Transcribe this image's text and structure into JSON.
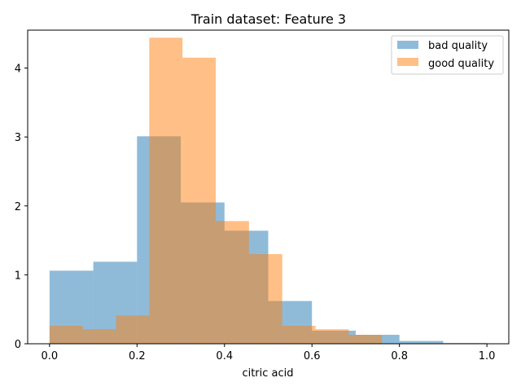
{
  "chart_data": {
    "type": "bar",
    "title": "Train dataset: Feature 3",
    "xlabel": "citric acid",
    "ylabel": "",
    "xlim": [
      -0.05,
      1.05
    ],
    "ylim": [
      0,
      4.55
    ],
    "xticks": [
      "0.0",
      "0.2",
      "0.4",
      "0.6",
      "0.8",
      "1.0"
    ],
    "xtick_values": [
      0.0,
      0.2,
      0.4,
      0.6,
      0.8,
      1.0
    ],
    "yticks": [
      "0",
      "1",
      "2",
      "3",
      "4"
    ],
    "ytick_values": [
      0,
      1,
      2,
      3,
      4
    ],
    "grid": false,
    "legend_position": "top-right",
    "series": [
      {
        "name": "bad quality",
        "color": "#1f77b4",
        "alpha": 0.5,
        "bins": [
          {
            "x0": 0.0,
            "x1": 0.1,
            "value": 1.06
          },
          {
            "x0": 0.1,
            "x1": 0.2,
            "value": 1.19
          },
          {
            "x0": 0.2,
            "x1": 0.3,
            "value": 3.01
          },
          {
            "x0": 0.3,
            "x1": 0.4,
            "value": 2.05
          },
          {
            "x0": 0.4,
            "x1": 0.5,
            "value": 1.64
          },
          {
            "x0": 0.5,
            "x1": 0.6,
            "value": 0.62
          },
          {
            "x0": 0.6,
            "x1": 0.7,
            "value": 0.19
          },
          {
            "x0": 0.7,
            "x1": 0.8,
            "value": 0.13
          },
          {
            "x0": 0.8,
            "x1": 0.9,
            "value": 0.04
          },
          {
            "x0": 0.9,
            "x1": 1.0,
            "value": 0.01
          }
        ]
      },
      {
        "name": "good quality",
        "color": "#ff7f0e",
        "alpha": 0.5,
        "bins": [
          {
            "x0": 0.0,
            "x1": 0.076,
            "value": 0.26
          },
          {
            "x0": 0.076,
            "x1": 0.152,
            "value": 0.21
          },
          {
            "x0": 0.152,
            "x1": 0.228,
            "value": 0.41
          },
          {
            "x0": 0.228,
            "x1": 0.304,
            "value": 4.44
          },
          {
            "x0": 0.304,
            "x1": 0.38,
            "value": 4.15
          },
          {
            "x0": 0.38,
            "x1": 0.456,
            "value": 1.78
          },
          {
            "x0": 0.456,
            "x1": 0.532,
            "value": 1.3
          },
          {
            "x0": 0.532,
            "x1": 0.608,
            "value": 0.26
          },
          {
            "x0": 0.608,
            "x1": 0.684,
            "value": 0.21
          },
          {
            "x0": 0.684,
            "x1": 0.76,
            "value": 0.13
          }
        ]
      }
    ]
  }
}
